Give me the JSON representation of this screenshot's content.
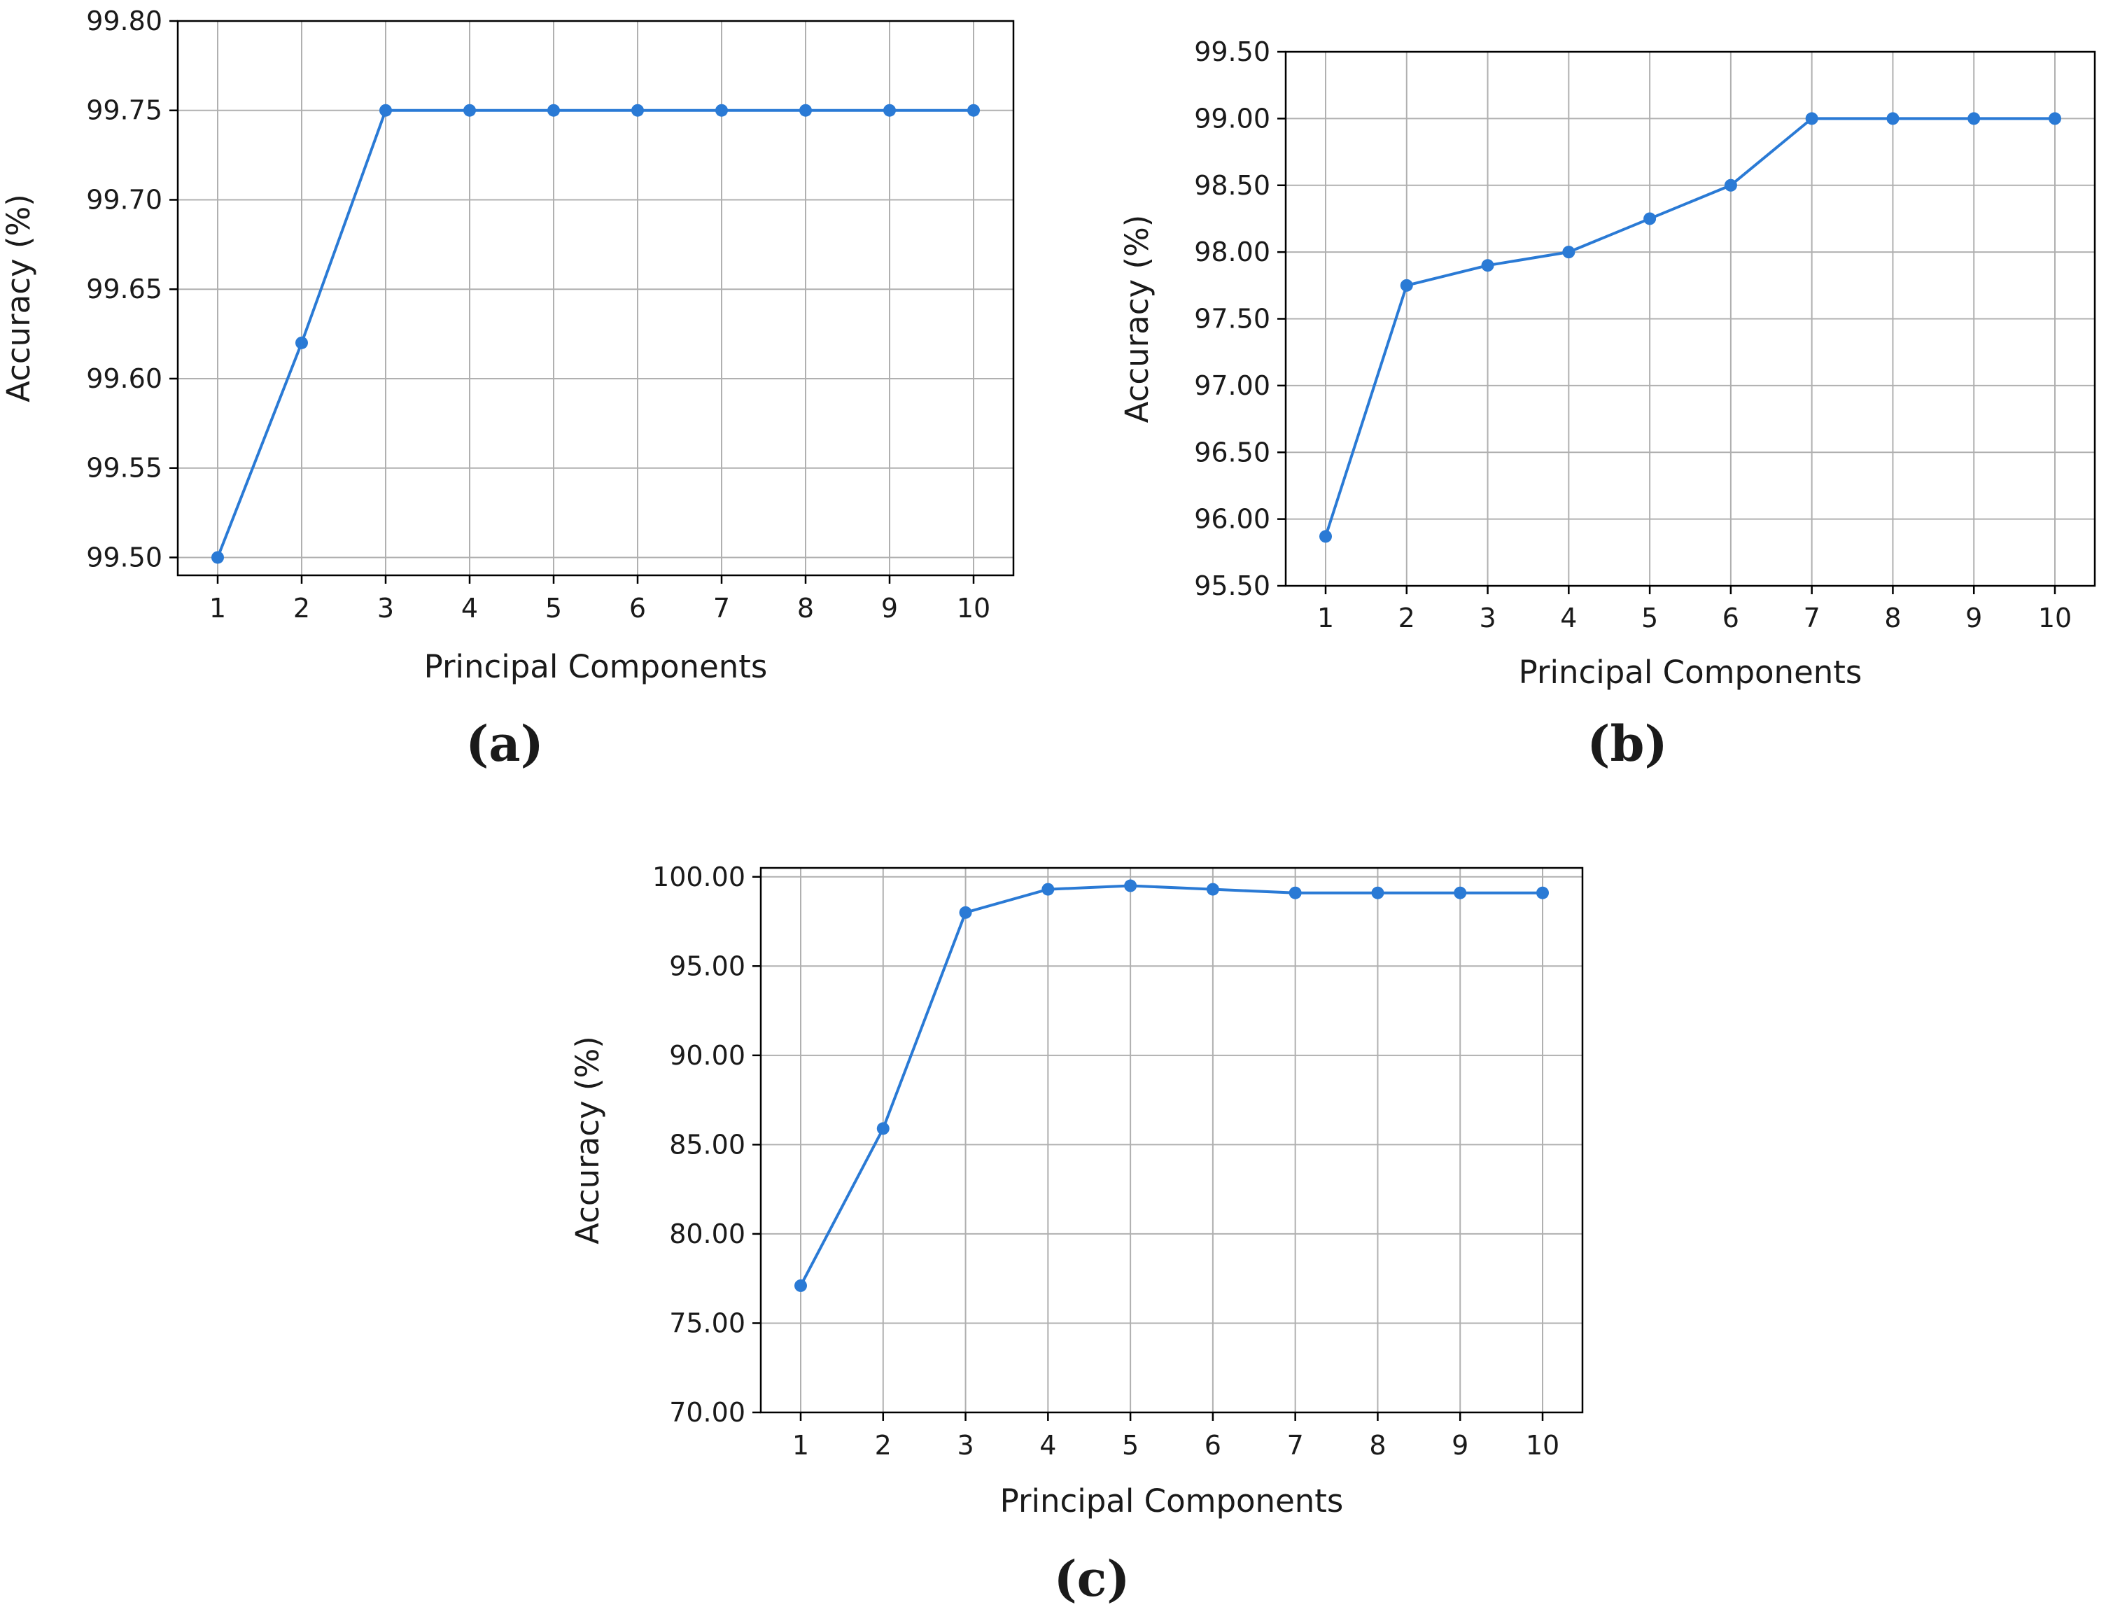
{
  "colors": {
    "series": "#2a7ad5"
  },
  "chart_data": [
    {
      "type": "line",
      "panel_label": "(a)",
      "xlabel": "Principal Components",
      "ylabel": "Accuracy (%)",
      "x": [
        1,
        2,
        3,
        4,
        5,
        6,
        7,
        8,
        9,
        10
      ],
      "x_ticks": [
        "1",
        "2",
        "3",
        "4",
        "5",
        "6",
        "7",
        "8",
        "9",
        "10"
      ],
      "series": [
        {
          "values": [
            99.5,
            99.62,
            99.75,
            99.75,
            99.75,
            99.75,
            99.75,
            99.75,
            99.75,
            99.75
          ]
        }
      ],
      "ylim": [
        99.49,
        99.8
      ],
      "y_ticks": [
        99.5,
        99.55,
        99.6,
        99.65,
        99.7,
        99.75,
        99.8
      ],
      "y_tick_labels": [
        "99.50",
        "99.55",
        "99.60",
        "99.65",
        "99.70",
        "99.75",
        "99.80"
      ],
      "grid": true
    },
    {
      "type": "line",
      "panel_label": "(b)",
      "xlabel": "Principal Components",
      "ylabel": "Accuracy (%)",
      "x": [
        1,
        2,
        3,
        4,
        5,
        6,
        7,
        8,
        9,
        10
      ],
      "x_ticks": [
        "1",
        "2",
        "3",
        "4",
        "5",
        "6",
        "7",
        "8",
        "9",
        "10"
      ],
      "series": [
        {
          "values": [
            95.87,
            97.75,
            97.9,
            98.0,
            98.25,
            98.5,
            99.0,
            99.0,
            99.0,
            99.0
          ]
        }
      ],
      "ylim": [
        95.5,
        99.5
      ],
      "y_ticks": [
        95.5,
        96.0,
        96.5,
        97.0,
        97.5,
        98.0,
        98.5,
        99.0,
        99.5
      ],
      "y_tick_labels": [
        "95.50",
        "96.00",
        "96.50",
        "97.00",
        "97.50",
        "98.00",
        "98.50",
        "99.00",
        "99.50"
      ],
      "grid": true
    },
    {
      "type": "line",
      "panel_label": "(c)",
      "xlabel": "Principal Components",
      "ylabel": "Accuracy (%)",
      "x": [
        1,
        2,
        3,
        4,
        5,
        6,
        7,
        8,
        9,
        10
      ],
      "x_ticks": [
        "1",
        "2",
        "3",
        "4",
        "5",
        "6",
        "7",
        "8",
        "9",
        "10"
      ],
      "series": [
        {
          "values": [
            77.1,
            85.9,
            98.0,
            99.3,
            99.5,
            99.3,
            99.1,
            99.1,
            99.1,
            99.1
          ]
        }
      ],
      "ylim": [
        70.0,
        100.5
      ],
      "y_ticks": [
        70,
        75,
        80,
        85,
        90,
        95,
        100
      ],
      "y_tick_labels": [
        "70.00",
        "75.00",
        "80.00",
        "85.00",
        "90.00",
        "95.00",
        "100.00"
      ],
      "grid": true
    }
  ]
}
